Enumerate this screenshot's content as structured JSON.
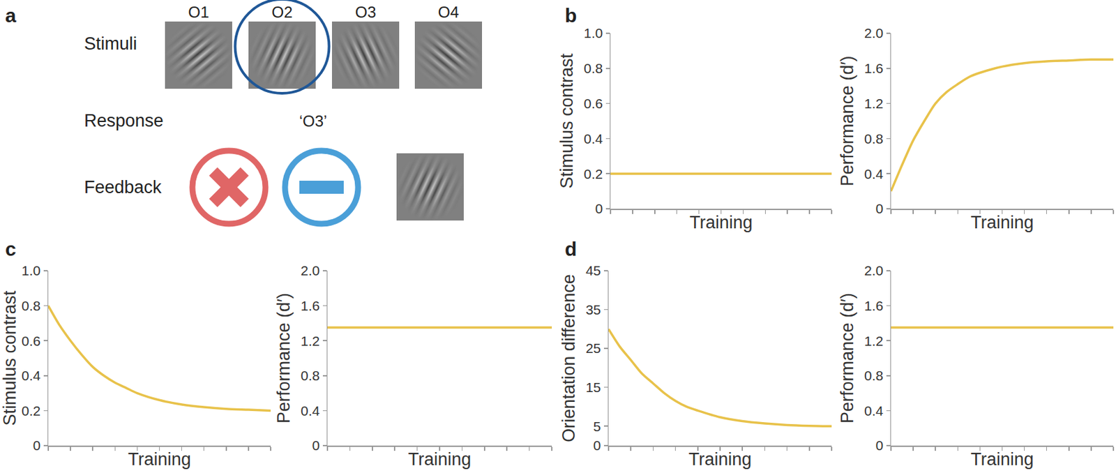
{
  "panel_labels": [
    "a",
    "b",
    "c",
    "d"
  ],
  "diagram": {
    "row_labels": [
      "Stimuli",
      "Response",
      "Feedback"
    ],
    "stimuli": [
      "O1",
      "O2",
      "O3",
      "O4"
    ],
    "target": "O2",
    "response": "‘O3’"
  },
  "chart_data": [
    {
      "type": "line",
      "x": [
        0,
        10
      ],
      "values": [
        0.2,
        0.2
      ],
      "color": "#e8c24a",
      "xlabel": "Training",
      "ylabel": "Stimulus contrast",
      "xlim": [
        0,
        10
      ],
      "xticks": [
        0,
        1,
        2,
        3,
        4,
        5,
        6,
        7,
        8,
        9,
        10
      ],
      "ylim": [
        0,
        1
      ],
      "yticks": [
        0,
        0.2,
        0.4,
        0.6,
        0.8,
        {
          "value": 1,
          "label": "1.0"
        }
      ],
      "tick_labels": "y"
    },
    {
      "type": "line",
      "x": [
        0,
        0.5,
        1,
        1.5,
        2,
        2.5,
        3,
        3.5,
        4,
        5,
        6,
        7,
        8,
        9,
        10
      ],
      "values": [
        0.2,
        0.5,
        0.78,
        1.0,
        1.2,
        1.33,
        1.42,
        1.5,
        1.55,
        1.62,
        1.66,
        1.68,
        1.69,
        1.7,
        1.7
      ],
      "color": "#e8c24a",
      "xlabel": "Training",
      "ylabel": "Performance (d′)",
      "xlim": [
        0,
        10
      ],
      "xticks": [
        0,
        1,
        2,
        3,
        4,
        5,
        6,
        7,
        8,
        9,
        10
      ],
      "ylim": [
        0,
        2
      ],
      "yticks": [
        0,
        0.4,
        0.8,
        1.2,
        1.6,
        {
          "value": 2,
          "label": "2.0"
        }
      ],
      "tick_labels": "y"
    },
    {
      "type": "line",
      "x": [
        0,
        0.5,
        1,
        1.5,
        2,
        2.5,
        3,
        3.5,
        4,
        5,
        6,
        7,
        8,
        9,
        10
      ],
      "values": [
        0.8,
        0.69,
        0.6,
        0.52,
        0.45,
        0.4,
        0.36,
        0.33,
        0.3,
        0.26,
        0.235,
        0.22,
        0.21,
        0.205,
        0.2
      ],
      "color": "#e8c24a",
      "xlabel": "Training",
      "ylabel": "Stimulus contrast",
      "xlim": [
        0,
        10
      ],
      "xticks": [
        0,
        1,
        2,
        3,
        4,
        5,
        6,
        7,
        8,
        9,
        10
      ],
      "ylim": [
        0,
        1
      ],
      "yticks": [
        0,
        0.2,
        0.4,
        0.6,
        0.8,
        {
          "value": 1,
          "label": "1.0"
        }
      ],
      "tick_labels": "y"
    },
    {
      "type": "line",
      "x": [
        0,
        10
      ],
      "values": [
        1.35,
        1.35
      ],
      "color": "#e8c24a",
      "xlabel": "Training",
      "ylabel": "Performance (d′)",
      "xlim": [
        0,
        10
      ],
      "xticks": [
        0,
        1,
        2,
        3,
        4,
        5,
        6,
        7,
        8,
        9,
        10
      ],
      "ylim": [
        0,
        2
      ],
      "yticks": [
        0,
        0.4,
        0.8,
        1.2,
        1.6,
        {
          "value": 2,
          "label": "2.0"
        }
      ],
      "tick_labels": "y"
    },
    {
      "type": "line",
      "x": [
        0,
        0.5,
        1,
        1.5,
        2,
        2.5,
        3,
        3.5,
        4,
        5,
        6,
        7,
        8,
        9,
        10
      ],
      "values": [
        30,
        25.5,
        22,
        18.5,
        16,
        13.5,
        11.5,
        10,
        9,
        7.3,
        6.3,
        5.7,
        5.3,
        5.1,
        5.0
      ],
      "color": "#e8c24a",
      "xlabel": "Training",
      "ylabel": "Orientation difference",
      "xlim": [
        0,
        10
      ],
      "xticks": [
        0,
        1,
        2,
        3,
        4,
        5,
        6,
        7,
        8,
        9,
        10
      ],
      "ylim": [
        0,
        45
      ],
      "yticks": [
        0,
        5,
        15,
        25,
        35,
        45
      ],
      "tick_labels": "y"
    },
    {
      "type": "line",
      "x": [
        0,
        10
      ],
      "values": [
        1.35,
        1.35
      ],
      "color": "#e8c24a",
      "xlabel": "Training",
      "ylabel": "Performance (d′)",
      "xlim": [
        0,
        10
      ],
      "xticks": [
        0,
        1,
        2,
        3,
        4,
        5,
        6,
        7,
        8,
        9,
        10
      ],
      "ylim": [
        0,
        2
      ],
      "yticks": [
        0,
        0.4,
        0.8,
        1.2,
        1.6,
        {
          "value": 2,
          "label": "2.0"
        }
      ],
      "tick_labels": "y"
    }
  ]
}
